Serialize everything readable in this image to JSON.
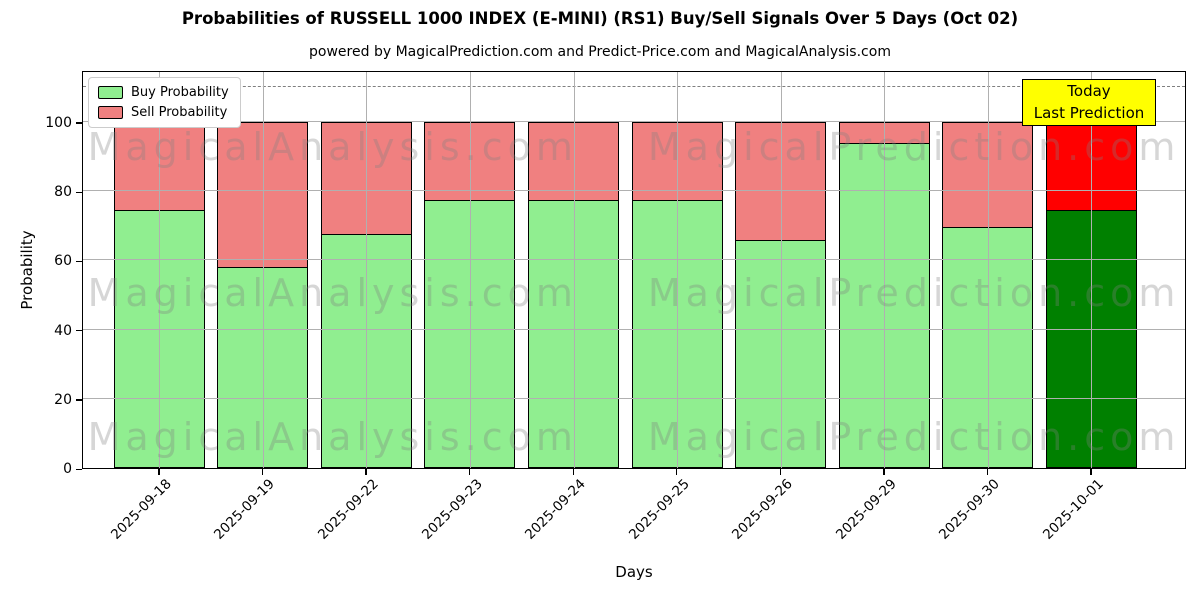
{
  "title": "Probabilities of RUSSELL 1000 INDEX (E-MINI) (RS1) Buy/Sell Signals Over 5 Days (Oct 02)",
  "subtitle": "powered by MagicalPrediction.com and Predict-Price.com and MagicalAnalysis.com",
  "legend": {
    "items": [
      {
        "label": "Buy Probability",
        "color": "#90ee90"
      },
      {
        "label": "Sell Probability",
        "color": "#f08080"
      }
    ]
  },
  "annotation": {
    "line1": "Today",
    "line2": "Last Prediction",
    "bg_color": "#ffff00"
  },
  "watermarks": [
    "MagicalAnalysis.com",
    "MagicalPrediction.com"
  ],
  "chart_data": {
    "type": "bar",
    "stacked": true,
    "title": "Probabilities of RUSSELL 1000 INDEX (E-MINI) (RS1) Buy/Sell Signals Over 5 Days (Oct 02)",
    "xlabel": "Days",
    "ylabel": "Probability",
    "categories": [
      "2025-09-18",
      "2025-09-19",
      "2025-09-22",
      "2025-09-23",
      "2025-09-24",
      "2025-09-25",
      "2025-09-26",
      "2025-09-29",
      "2025-09-30",
      "2025-10-01"
    ],
    "series": [
      {
        "name": "Buy Probability",
        "values": [
          74.5,
          58,
          67.5,
          77.5,
          77.5,
          77.5,
          66,
          94,
          69.5,
          74.5
        ],
        "color": "#90ee90",
        "last_bar_color": "#008000"
      },
      {
        "name": "Sell Probability",
        "values": [
          25.5,
          42,
          32.5,
          22.5,
          22.5,
          22.5,
          34,
          6,
          30.5,
          25.5
        ],
        "color": "#f08080",
        "last_bar_color": "#ff0000"
      }
    ],
    "yticks": [
      0,
      20,
      40,
      60,
      80,
      100
    ],
    "ylim": [
      0,
      115
    ],
    "dashed_line_y": 110,
    "grid": true,
    "grid_color": "#b0b0b0",
    "dashed_line_color": "#7f7f7f",
    "legend_position": "upper left"
  }
}
